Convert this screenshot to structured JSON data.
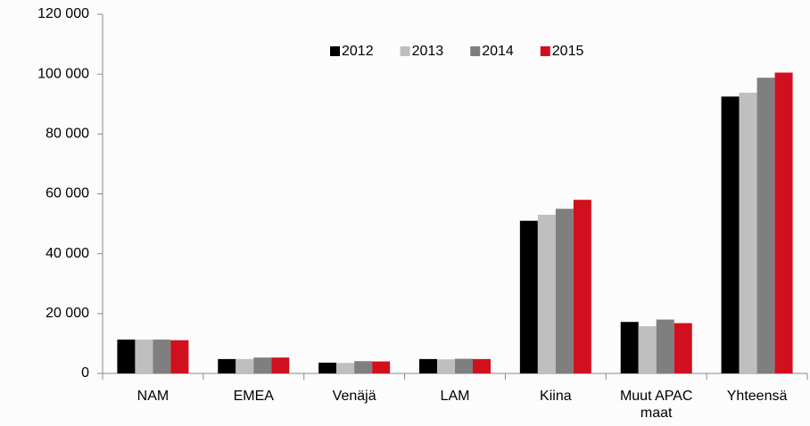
{
  "chart_data": {
    "type": "bar",
    "categories": [
      "NAM",
      "EMEA",
      "Venäjä",
      "LAM",
      "Kiina",
      "Muut APAC maat",
      "Yhteensä"
    ],
    "series": [
      {
        "name": "2012",
        "color": "#000000",
        "values": [
          11300,
          4800,
          3600,
          4800,
          51000,
          17200,
          92500
        ]
      },
      {
        "name": "2013",
        "color": "#bfbfbf",
        "values": [
          11300,
          4800,
          3500,
          4700,
          53000,
          15800,
          93800
        ]
      },
      {
        "name": "2014",
        "color": "#7f7f7f",
        "values": [
          11300,
          5300,
          4100,
          4900,
          55000,
          18000,
          98800
        ]
      },
      {
        "name": "2015",
        "color": "#d0101e",
        "values": [
          11100,
          5300,
          4000,
          4800,
          58000,
          16800,
          100500
        ]
      }
    ],
    "ylim": [
      0,
      120000
    ],
    "yticks": [
      0,
      {
        "value": 20000,
        "label": "20 000"
      },
      {
        "value": 40000,
        "label": "40 000"
      },
      {
        "value": 60000,
        "label": "60 000"
      },
      {
        "value": 80000,
        "label": "80 000"
      },
      {
        "value": 100000,
        "label": "100 000"
      },
      {
        "value": 120000,
        "label": "120 000"
      }
    ],
    "grid": false,
    "legend": "top"
  }
}
